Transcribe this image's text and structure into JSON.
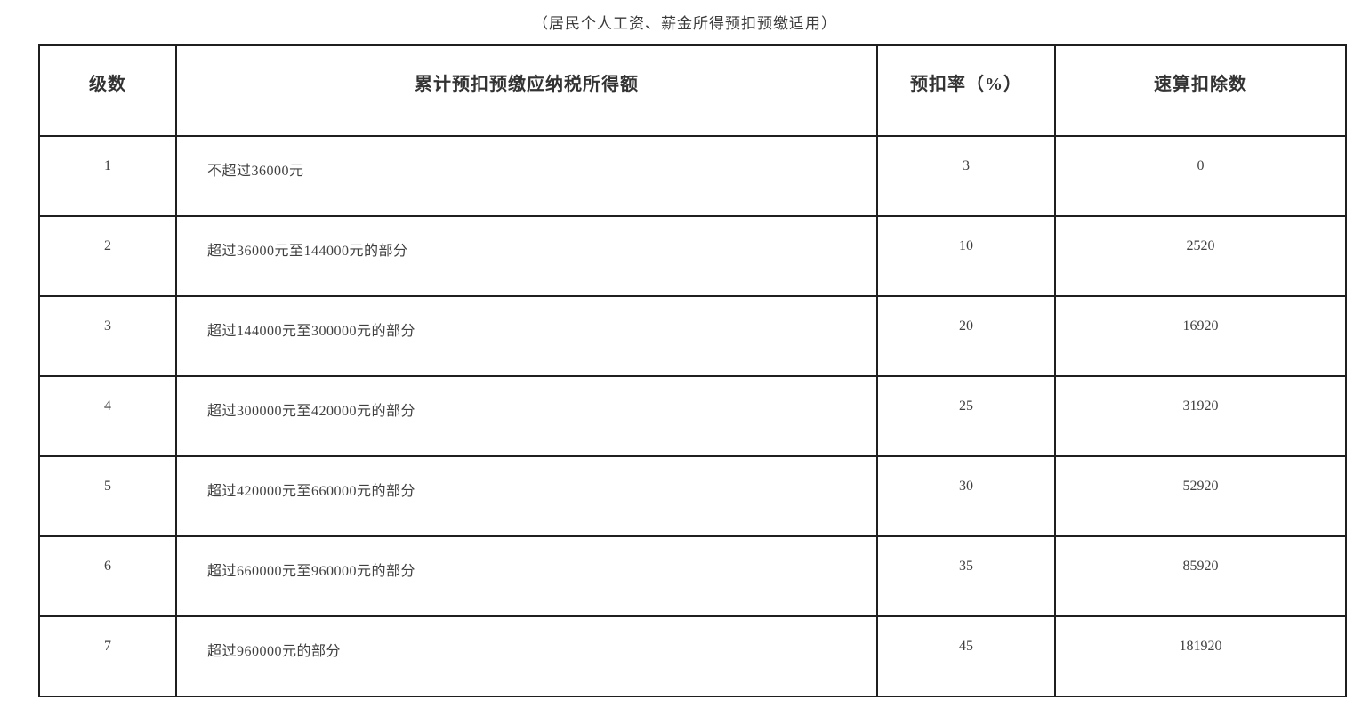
{
  "page": {
    "title": "（居民个人工资、薪金所得预扣预缴适用）"
  },
  "table": {
    "columns": {
      "level": "级数",
      "bracket": "累计预扣预缴应纳税所得额",
      "rate": "预扣率（%）",
      "deduction": "速算扣除数"
    },
    "rows": [
      {
        "level": "1",
        "bracket": "不超过36000元",
        "rate": "3",
        "deduction": "0"
      },
      {
        "level": "2",
        "bracket": "超过36000元至144000元的部分",
        "rate": "10",
        "deduction": "2520"
      },
      {
        "level": "3",
        "bracket": "超过144000元至300000元的部分",
        "rate": "20",
        "deduction": "16920"
      },
      {
        "level": "4",
        "bracket": "超过300000元至420000元的部分",
        "rate": "25",
        "deduction": "31920"
      },
      {
        "level": "5",
        "bracket": "超过420000元至660000元的部分",
        "rate": "30",
        "deduction": "52920"
      },
      {
        "level": "6",
        "bracket": "超过660000元至960000元的部分",
        "rate": "35",
        "deduction": "85920"
      },
      {
        "level": "7",
        "bracket": "超过960000元的部分",
        "rate": "45",
        "deduction": "181920"
      }
    ]
  },
  "colors": {
    "text": "#3c3c3c",
    "border": "#1f1f1f",
    "background": "#ffffff"
  }
}
